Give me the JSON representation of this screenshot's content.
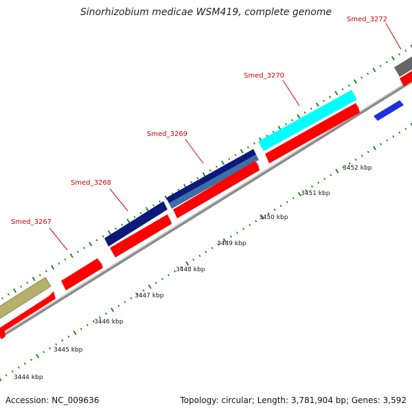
{
  "title": "Sinorhizobium medicae WSM419, complete genome",
  "footer": {
    "accession": "Accession: NC_009636",
    "summary": "Topology: circular; Length: 3,781,904 bp; Genes: 3,592"
  },
  "colors": {
    "gene_label": "#cc0000",
    "red": "#ff0000",
    "tick": "#1a8a1a",
    "backbone": "#9a9a9a",
    "navy": "#0b1a7a",
    "steelblue": "#3c6ea8",
    "cyan": "#00ffff",
    "khaki": "#b5b06a",
    "blue": "#1d2ee0",
    "gray": "#666666"
  },
  "scale_labels": [
    "3444 kbp",
    "3445 kbp",
    "3446 kbp",
    "3447 kbp",
    "3448 kbp",
    "3449 kbp",
    "3450 kbp",
    "3451 kbp",
    "3452 kbp"
  ],
  "gene_labels": [
    "Smed_3267",
    "Smed_3268",
    "Smed_3269",
    "Smed_3270",
    "Smed_3272"
  ]
}
